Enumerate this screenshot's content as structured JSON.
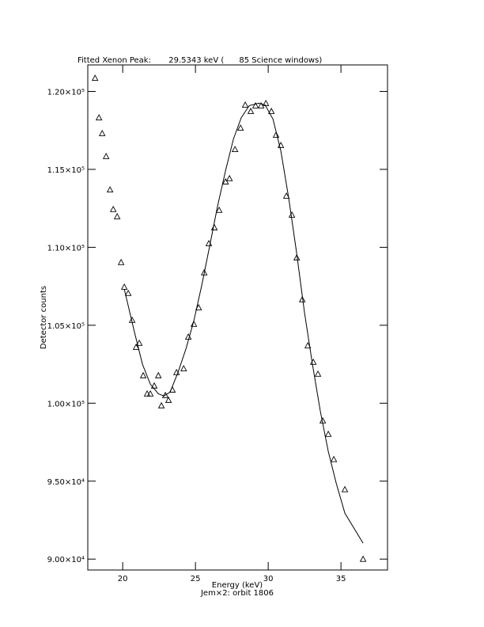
{
  "chart_data": {
    "type": "scatter",
    "title": "Fitted Xenon Peak:       29.5343 keV (      85 Science windows)",
    "x_label": "Energy (keV)",
    "y_label": "Detector counts",
    "subtitle": "Jem×2: orbit 1806",
    "xlim": [
      17.6,
      38.2
    ],
    "xticks": [
      20,
      25,
      30,
      35
    ],
    "ylim": [
      89300,
      121700
    ],
    "yticks": [
      {
        "value": 90000,
        "label": "9.00×10⁴"
      },
      {
        "value": 95000,
        "label": "9.50×10⁴"
      },
      {
        "value": 100000,
        "label": "1.00×10⁵"
      },
      {
        "value": 105000,
        "label": "1.05×10⁵"
      },
      {
        "value": 110000,
        "label": "1.10×10⁵"
      },
      {
        "value": 115000,
        "label": "1.15×10⁵"
      },
      {
        "value": 120000,
        "label": "1.20×10⁵"
      }
    ],
    "color": "#000000",
    "points": {
      "x": [
        18.1,
        18.37,
        18.59,
        18.86,
        19.13,
        19.35,
        19.62,
        19.89,
        20.11,
        20.38,
        20.65,
        20.92,
        21.14,
        21.41,
        21.68,
        21.9,
        22.17,
        22.45,
        22.66,
        22.93,
        23.15,
        23.42,
        23.7,
        24.19,
        24.51,
        24.89,
        25.22,
        25.6,
        25.92,
        26.3,
        26.63,
        27.07,
        27.34,
        27.72,
        28.1,
        28.42,
        28.8,
        29.13,
        29.51,
        29.84,
        30.22,
        30.54,
        30.87,
        31.25,
        31.63,
        31.96,
        32.34,
        32.72,
        33.1,
        33.42,
        33.75,
        34.13,
        34.51,
        35.27,
        36.52
      ],
      "y": [
        120860,
        118320,
        117310,
        115840,
        113700,
        112440,
        111980,
        109040,
        107460,
        107060,
        105330,
        103600,
        103860,
        101780,
        100610,
        100610,
        101120,
        101780,
        99850,
        100510,
        100200,
        100860,
        101980,
        102230,
        104260,
        105080,
        106140,
        108380,
        110250,
        111270,
        112390,
        114210,
        114420,
        116290,
        117660,
        119140,
        118730,
        119090,
        119090,
        119240,
        118730,
        117210,
        116550,
        113300,
        112080,
        109340,
        106650,
        103700,
        102640,
        101880,
        98880,
        98020,
        96400,
        94470,
        90000
      ]
    },
    "fit": {
      "x": [
        20.11,
        20.82,
        21.36,
        21.9,
        22.45,
        22.83,
        23.26,
        23.8,
        24.35,
        24.89,
        25.43,
        25.98,
        26.52,
        27.07,
        27.61,
        28.15,
        28.7,
        29.35,
        29.78,
        30.33,
        30.87,
        31.41,
        31.96,
        32.5,
        33.04,
        33.59,
        34.13,
        34.67,
        35.27,
        36.52
      ],
      "y": [
        107310,
        104520,
        102490,
        101220,
        100610,
        100460,
        100710,
        101980,
        103500,
        105280,
        107560,
        110100,
        112640,
        114920,
        116950,
        118320,
        119090,
        119240,
        119140,
        118220,
        116190,
        113150,
        109590,
        105790,
        102490,
        99440,
        96900,
        94870,
        92940,
        91020
      ]
    }
  }
}
